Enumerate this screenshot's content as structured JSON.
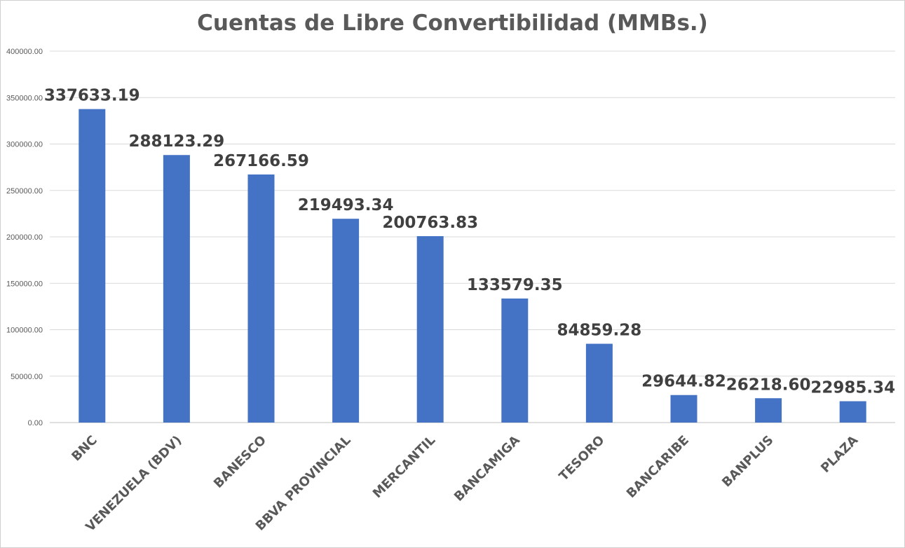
{
  "chart_data": {
    "type": "bar",
    "title": "Cuentas de Libre Convertibilidad (MMBs.)",
    "xlabel": "",
    "ylabel": "",
    "categories": [
      "BNC",
      "VENEZUELA (BDV)",
      "BANESCO",
      "BBVA PROVINCIAL",
      "MERCANTIL",
      "BANCAMIGA",
      "TESORO",
      "BANCARIBE",
      "BANPLUS",
      "PLAZA"
    ],
    "values": [
      337633.19,
      288123.29,
      267166.59,
      219493.34,
      200763.83,
      133579.35,
      84859.28,
      29644.82,
      26218.6,
      22985.34
    ],
    "data_labels": [
      "337633.19",
      "288123.29",
      "267166.59",
      "219493.34",
      "200763.83",
      "133579.35",
      "84859.28",
      "29644.82",
      "26218.60",
      "22985.34"
    ],
    "yticks": [
      0,
      50000,
      100000,
      150000,
      200000,
      250000,
      300000,
      350000,
      400000
    ],
    "ytick_labels": [
      "0.00",
      "50000.00",
      "100000.00",
      "150000.00",
      "200000.00",
      "250000.00",
      "300000.00",
      "350000.00",
      "400000.00"
    ],
    "ylim": [
      0,
      400000
    ],
    "grid": true,
    "legend": "none",
    "bar_color": "#4472C4",
    "grid_color": "#d9d9d9"
  }
}
